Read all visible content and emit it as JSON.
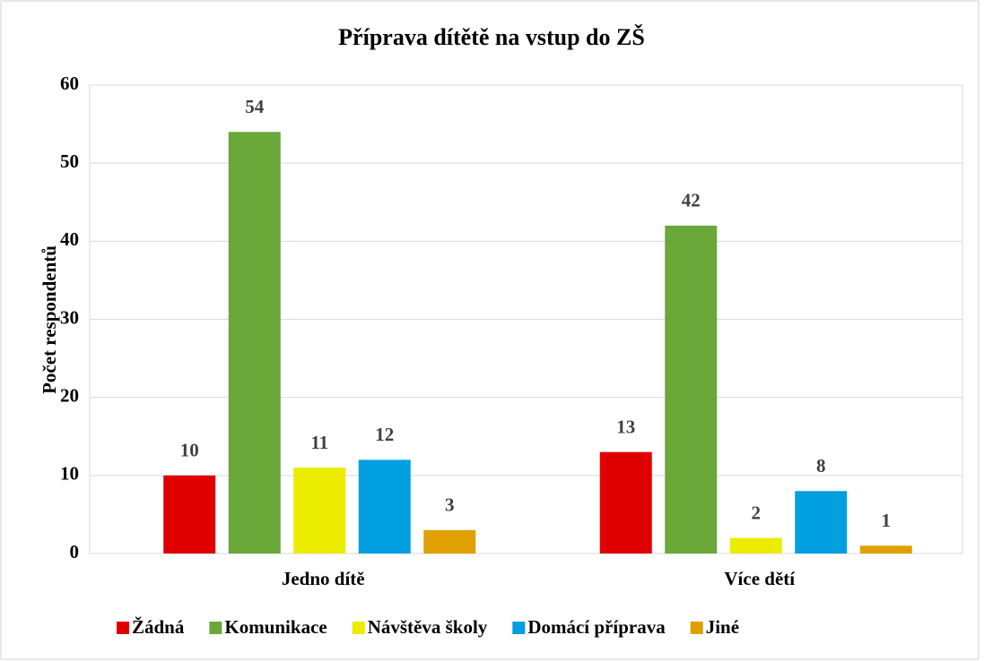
{
  "chart_data": {
    "type": "bar",
    "title": "Příprava dítětě na vstup do ZŠ",
    "y_label": "Počet respondentů",
    "categories": [
      "Jedno dítě",
      "Více dětí"
    ],
    "series": [
      {
        "name": "Žádná",
        "color": "#e00000",
        "values": [
          10,
          13
        ]
      },
      {
        "name": "Komunikace",
        "color": "#6aa83a",
        "values": [
          54,
          42
        ]
      },
      {
        "name": "Návštěva školy",
        "color": "#ecec00",
        "values": [
          11,
          2
        ]
      },
      {
        "name": "Domácí příprava",
        "color": "#009fe0",
        "values": [
          12,
          8
        ]
      },
      {
        "name": "Jiné",
        "color": "#e0a000",
        "values": [
          3,
          1
        ]
      }
    ],
    "ylim": [
      0,
      60
    ],
    "yticks": [
      0,
      10,
      20,
      30,
      40,
      50,
      60
    ],
    "grid": true,
    "legend": "bottom"
  }
}
